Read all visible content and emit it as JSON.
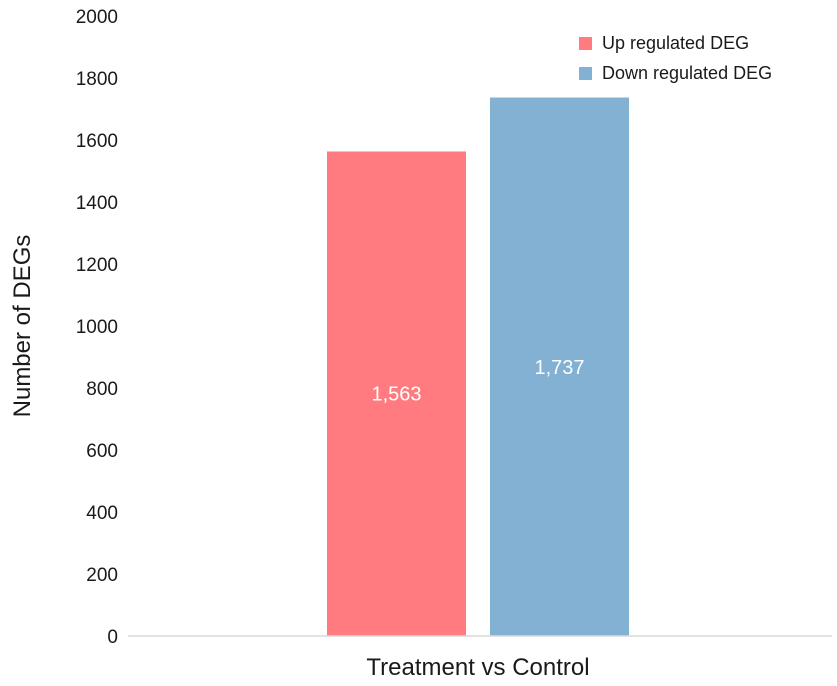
{
  "chart_data": {
    "type": "bar",
    "categories": [
      "Treatment vs Control"
    ],
    "series": [
      {
        "name": "Up regulated DEG",
        "values": [
          1563
        ],
        "labels": [
          "1,563"
        ],
        "color": "#ff7b7f"
      },
      {
        "name": "Down regulated DEG",
        "values": [
          1737
        ],
        "labels": [
          "1,737"
        ],
        "color": "#82b1d3"
      }
    ],
    "xlabel": "Treatment vs Control",
    "ylabel": "Number of DEGs",
    "ylim": [
      0,
      2000
    ],
    "yticks": [
      0,
      200,
      400,
      600,
      800,
      1000,
      1200,
      1400,
      1600,
      1800,
      2000
    ],
    "grid": false,
    "legend_position": "top-right"
  }
}
